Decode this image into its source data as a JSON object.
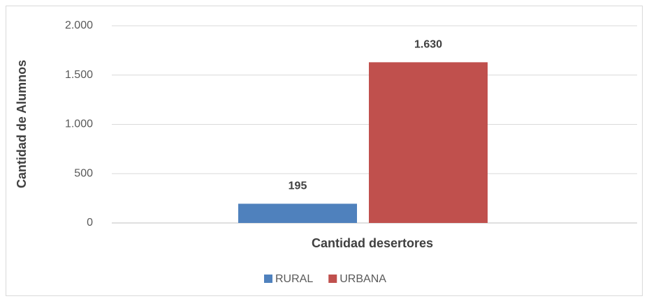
{
  "chart_data": {
    "type": "bar",
    "y_label": "Cantidad de Alumnos",
    "categories": [
      "Cantidad desertores"
    ],
    "series": [
      {
        "name": "RURAL",
        "color": "#4f81bd",
        "values": [
          195
        ]
      },
      {
        "name": "URBANA",
        "color": "#c0504d",
        "values": [
          1630
        ],
        "value_labels": [
          "1.630"
        ]
      }
    ],
    "ylim": [
      0,
      2000
    ],
    "yticks": [
      0,
      500,
      {
        "value": 1000,
        "label": "1.000"
      },
      {
        "value": 1500,
        "label": "1.500"
      },
      {
        "value": 2000,
        "label": "2.000"
      }
    ],
    "grid": true,
    "legend": "bottom"
  }
}
